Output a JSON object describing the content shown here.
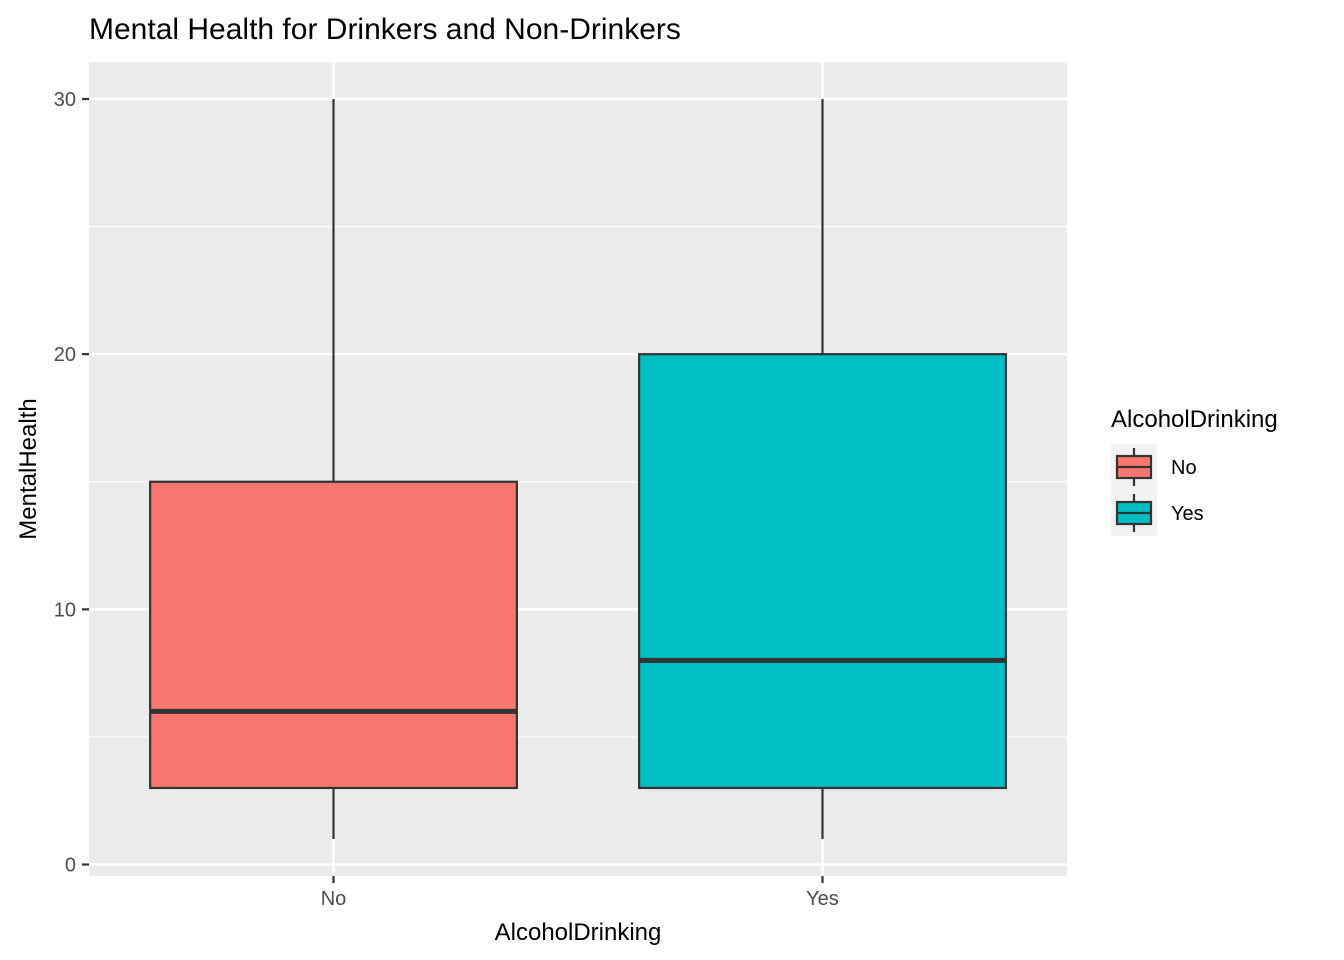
{
  "chart_data": {
    "type": "boxplot",
    "title": "Mental Health for Drinkers and Non-Drinkers",
    "xlabel": "AlcoholDrinking",
    "ylabel": "MentalHealth",
    "categories": [
      "No",
      "Yes"
    ],
    "y_ticks": [
      0,
      10,
      20,
      30
    ],
    "ylim": [
      -0.45,
      31.45
    ],
    "grid": true,
    "legend": {
      "title": "AlcoholDrinking",
      "position": "right",
      "items": [
        "No",
        "Yes"
      ]
    },
    "colors": {
      "No": "#F8766D",
      "Yes": "#00BFC4",
      "panel_background": "#EBEBEB",
      "gridline": "#FFFFFF",
      "box_outline": "#333333"
    },
    "boxes": [
      {
        "category": "No",
        "whisker_low": 1,
        "q1": 3,
        "median": 6,
        "q3": 15,
        "whisker_high": 30
      },
      {
        "category": "Yes",
        "whisker_low": 1,
        "q1": 3,
        "median": 8,
        "q3": 20,
        "whisker_high": 30
      }
    ]
  }
}
